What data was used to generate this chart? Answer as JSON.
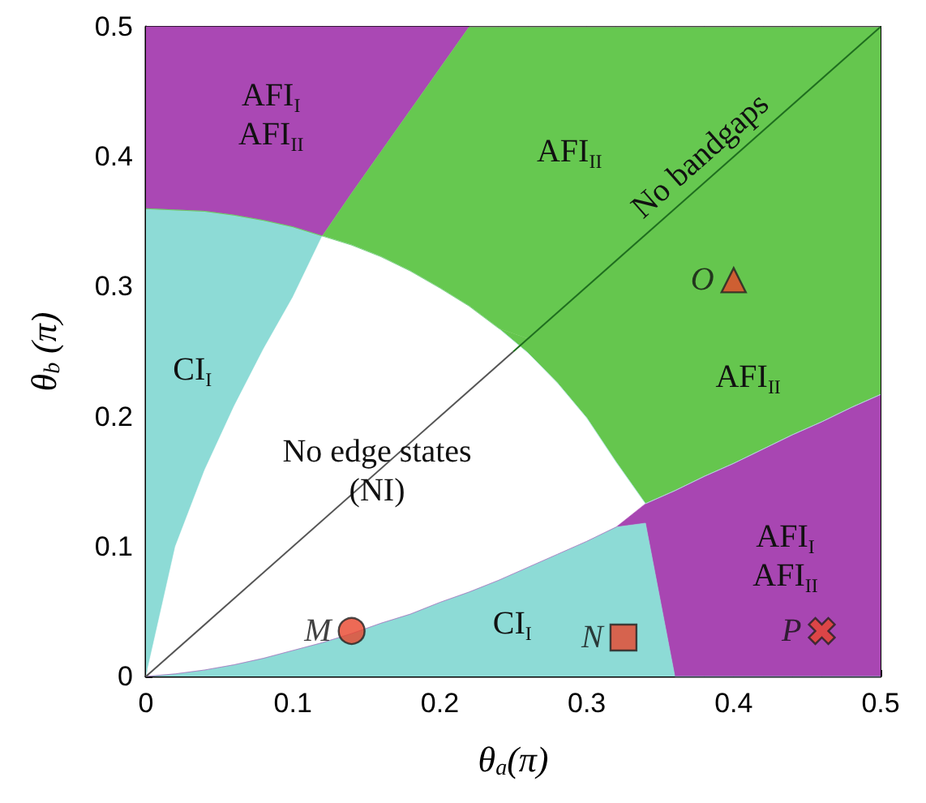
{
  "chart_data": {
    "type": "area",
    "stacked": true,
    "xlabel": "θ$_{a}$(π)",
    "ylabel": "θ$_{b}$ (π)",
    "x": [
      0,
      0.02,
      0.04,
      0.06,
      0.08,
      0.1,
      0.12,
      0.14,
      0.16,
      0.18,
      0.2,
      0.22,
      0.24,
      0.26,
      0.28,
      0.3,
      0.32,
      0.34,
      0.36,
      0.38,
      0.4,
      0.42,
      0.44,
      0.46,
      0.48,
      0.5
    ],
    "series": [
      {
        "name": "CI$_{I}$",
        "color": "#8ddbd6",
        "values": [
          0,
          0.002,
          0.005,
          0.009,
          0.014,
          0.02,
          0.026,
          0.033,
          0.041,
          0.048,
          0.057,
          0.065,
          0.074,
          0.084,
          0.094,
          0.104,
          0.115,
          0.118,
          0,
          0,
          0,
          0,
          0,
          0,
          0,
          0
        ]
      },
      {
        "name": "AFI$_{I}$\nAFI$_{II}$",
        "color": "#a846b2",
        "values": [
          0,
          0,
          0,
          0,
          0,
          0,
          0,
          0,
          0,
          0,
          0,
          0,
          0,
          0,
          0,
          0,
          0,
          0.015,
          0.143,
          0.154,
          0.164,
          0.175,
          0.186,
          0.196,
          0.207,
          0.217
        ]
      },
      {
        "name": "No edge states\n(NI)",
        "color": "#ffffff",
        "values": [
          0,
          0.098,
          0.154,
          0.199,
          0.238,
          0.272,
          0.313,
          0.299,
          0.282,
          0.264,
          0.242,
          0.22,
          0.194,
          0.165,
          0.132,
          0.095,
          0.05,
          0,
          0,
          0,
          0,
          0,
          0,
          0,
          0,
          0
        ]
      },
      {
        "name": "CI$_{I}$",
        "color": "#8ddbd6",
        "values": [
          0.36,
          0.259,
          0.199,
          0.147,
          0.099,
          0.054,
          0,
          0,
          0,
          0,
          0,
          0,
          0,
          0,
          0,
          0,
          0,
          0,
          0,
          0,
          0,
          0,
          0,
          0,
          0,
          0
        ]
      },
      {
        "name": "AFI$_{II}$",
        "color": "#65c64e",
        "values": [
          0,
          0,
          0,
          0,
          0,
          0,
          0,
          0,
          0,
          0,
          0,
          0,
          0,
          0.011,
          0.054,
          0.101,
          0.155,
          0.207,
          0.217,
          0.226,
          0.236,
          0.245,
          0.254,
          0.264,
          0.273,
          0.283
        ]
      },
      {
        "name": "AFI$_{II}$",
        "color": "#66c850",
        "values": [
          0,
          0,
          0,
          0,
          0,
          0,
          0,
          0.04,
          0.081,
          0.124,
          0.169,
          0.215,
          0.232,
          0.24,
          0.22,
          0.2,
          0.18,
          0.16,
          0.14,
          0.12,
          0.1,
          0.08,
          0.06,
          0.04,
          0.02,
          0
        ]
      },
      {
        "name": "AFI$_{I}$\nAFI$_{II}$",
        "color": "#aa48b4",
        "values": [
          0.14,
          0.141,
          0.142,
          0.145,
          0.149,
          0.154,
          0.161,
          0.128,
          0.096,
          0.064,
          0.032,
          0,
          0,
          0,
          0,
          0,
          0,
          0,
          0,
          0,
          0,
          0,
          0,
          0,
          0,
          0
        ]
      },
      {
        "type": "line",
        "color": "#555555",
        "x": [
          0,
          0.25
        ],
        "values": [
          0,
          0.25
        ]
      },
      {
        "type": "line",
        "name": "No bandgaps",
        "color": "#1f6e1f",
        "x": [
          0.25,
          0.5
        ],
        "values": [
          0.25,
          0.5
        ]
      },
      {
        "type": "scatter",
        "name": "M",
        "marker": "circle",
        "color": "#e8452c",
        "x": [
          0.14
        ],
        "values": [
          0.035
        ]
      },
      {
        "type": "scatter",
        "name": "N",
        "marker": "square",
        "color": "#e8452c",
        "x": [
          0.325
        ],
        "values": [
          0.03
        ]
      },
      {
        "type": "scatter",
        "name": "O",
        "marker": "triangle",
        "color": "#e8452c",
        "x": [
          0.4
        ],
        "values": [
          0.305
        ]
      },
      {
        "type": "scatter",
        "name": "P",
        "marker": "cross",
        "color": "#e8452c",
        "x": [
          0.46
        ],
        "values": [
          0.035
        ]
      }
    ],
    "xlim": [
      0,
      0.5
    ],
    "ylim": [
      0,
      0.5
    ],
    "xticks": [
      0,
      0.1,
      0.2,
      0.3,
      0.4,
      0.5
    ],
    "yticks": [
      0,
      0.1,
      0.2,
      0.3,
      0.4,
      0.5
    ],
    "grid": false,
    "legend": false
  }
}
